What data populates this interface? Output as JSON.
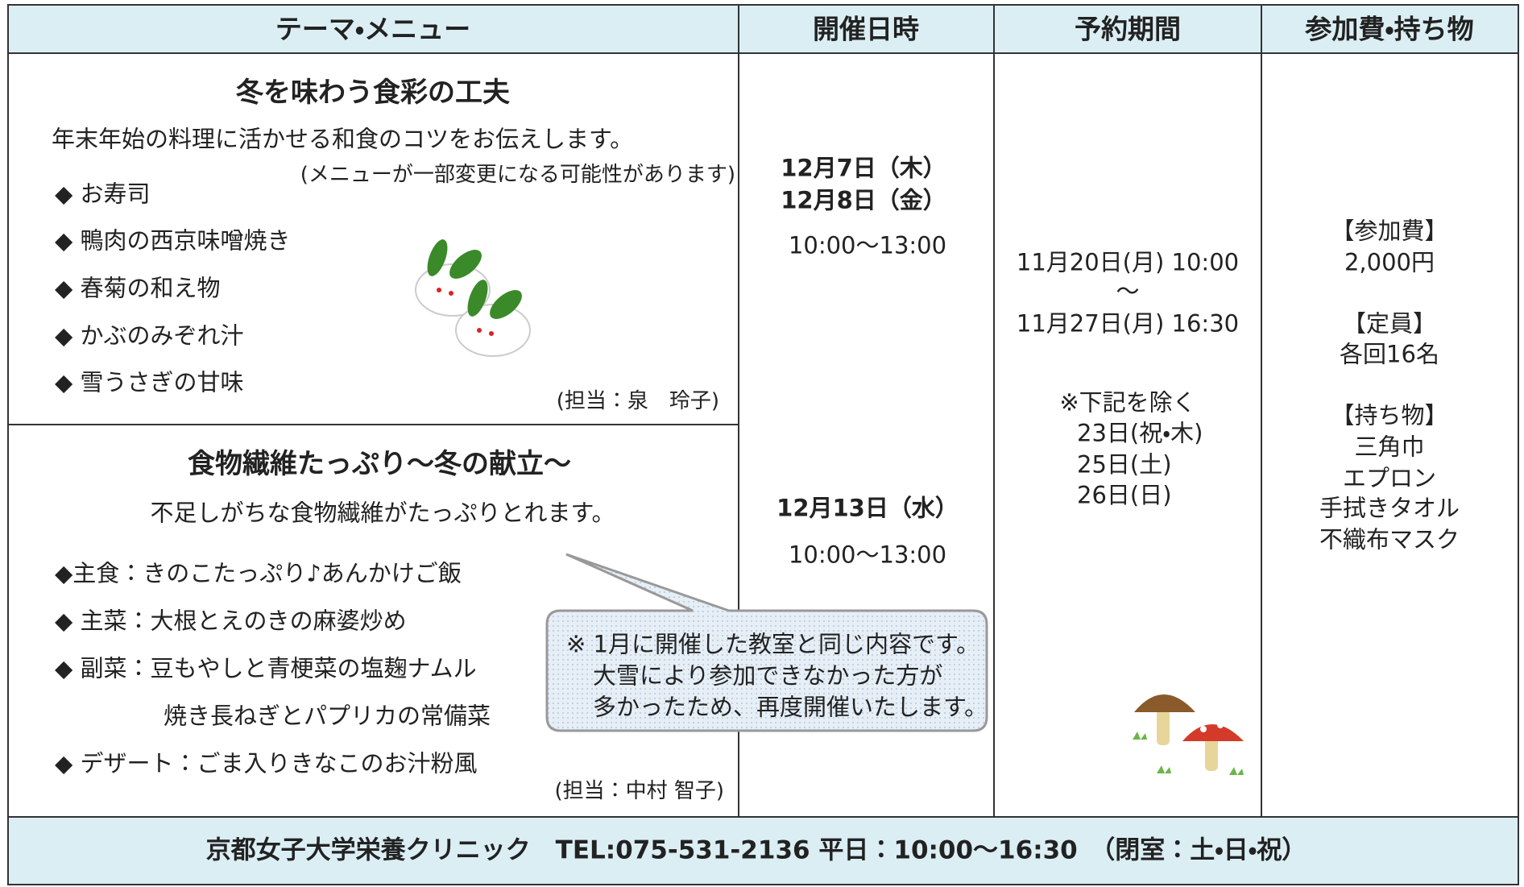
{
  "header": [
    "テーマ・メニュー",
    "開催日時",
    "予約期間",
    "参加費・持ち物"
  ],
  "sessions": [
    {
      "title": "冬を味わう食彩の工夫",
      "description": "年末年始の料理に活かせる和食のコツをお伝えします。",
      "note": "(メニューが一部変更になる可能性があります)",
      "menu": [
        "◆ お寿司",
        "◆ 鴨肉の西京味噌焼き",
        "◆ 春菊の和え物",
        "◆ かぶのみぞれ汁",
        "◆ 雪うさぎの甘味"
      ],
      "staff": "(担当：泉　玲子)",
      "dates": [
        "12月7日（木）",
        "12月8日（金）"
      ],
      "time": "10:00～13:00"
    },
    {
      "title": "食物繊維たっぷり～冬の献立～",
      "description": "不足しがちな食物繊維がたっぷりとれます。",
      "menu": [
        "◆主食：きのこたっぷり♪あんかけご飯",
        "◆ 主菜：大根とえのきの麻婆炒め",
        "◆ 副菜：豆もやしと青梗菜の塩麹ナムル",
        "焼き長ねぎとパプリカの常備菜",
        "◆ デザート：ごま入りきなこのお汁粉風"
      ],
      "staff": "(担当：中村 智子)",
      "dates": [
        "12月13日（水）"
      ],
      "time": "10:00～13:00"
    }
  ],
  "reservation": {
    "start": "11月20日(月) 10:00",
    "separator": "～",
    "end": "11月27日(月) 16:30",
    "exclusion_title": "※下記を除く",
    "exclusions": [
      "23日(祝・木)",
      "25日(土)",
      "26日(日)"
    ]
  },
  "fees": [
    {
      "label": "【参加費】",
      "items": [
        "2,000円"
      ]
    },
    {
      "label": "【定員】",
      "items": [
        "各回16名"
      ]
    },
    {
      "label": "【持ち物】",
      "items": [
        "三角巾",
        "エプロン",
        "手拭きタオル",
        "不織布マスク"
      ]
    }
  ],
  "callout": [
    "※ 1月に開催した教室と同じ内容です。",
    "大雪により参加できなかった方が",
    "多かったため、再度開催いたします。"
  ],
  "footer": "京都女子大学栄養クリニック　TEL:075-531-2136  平日：10:00～16:30　（閉室：土・日・祝）"
}
